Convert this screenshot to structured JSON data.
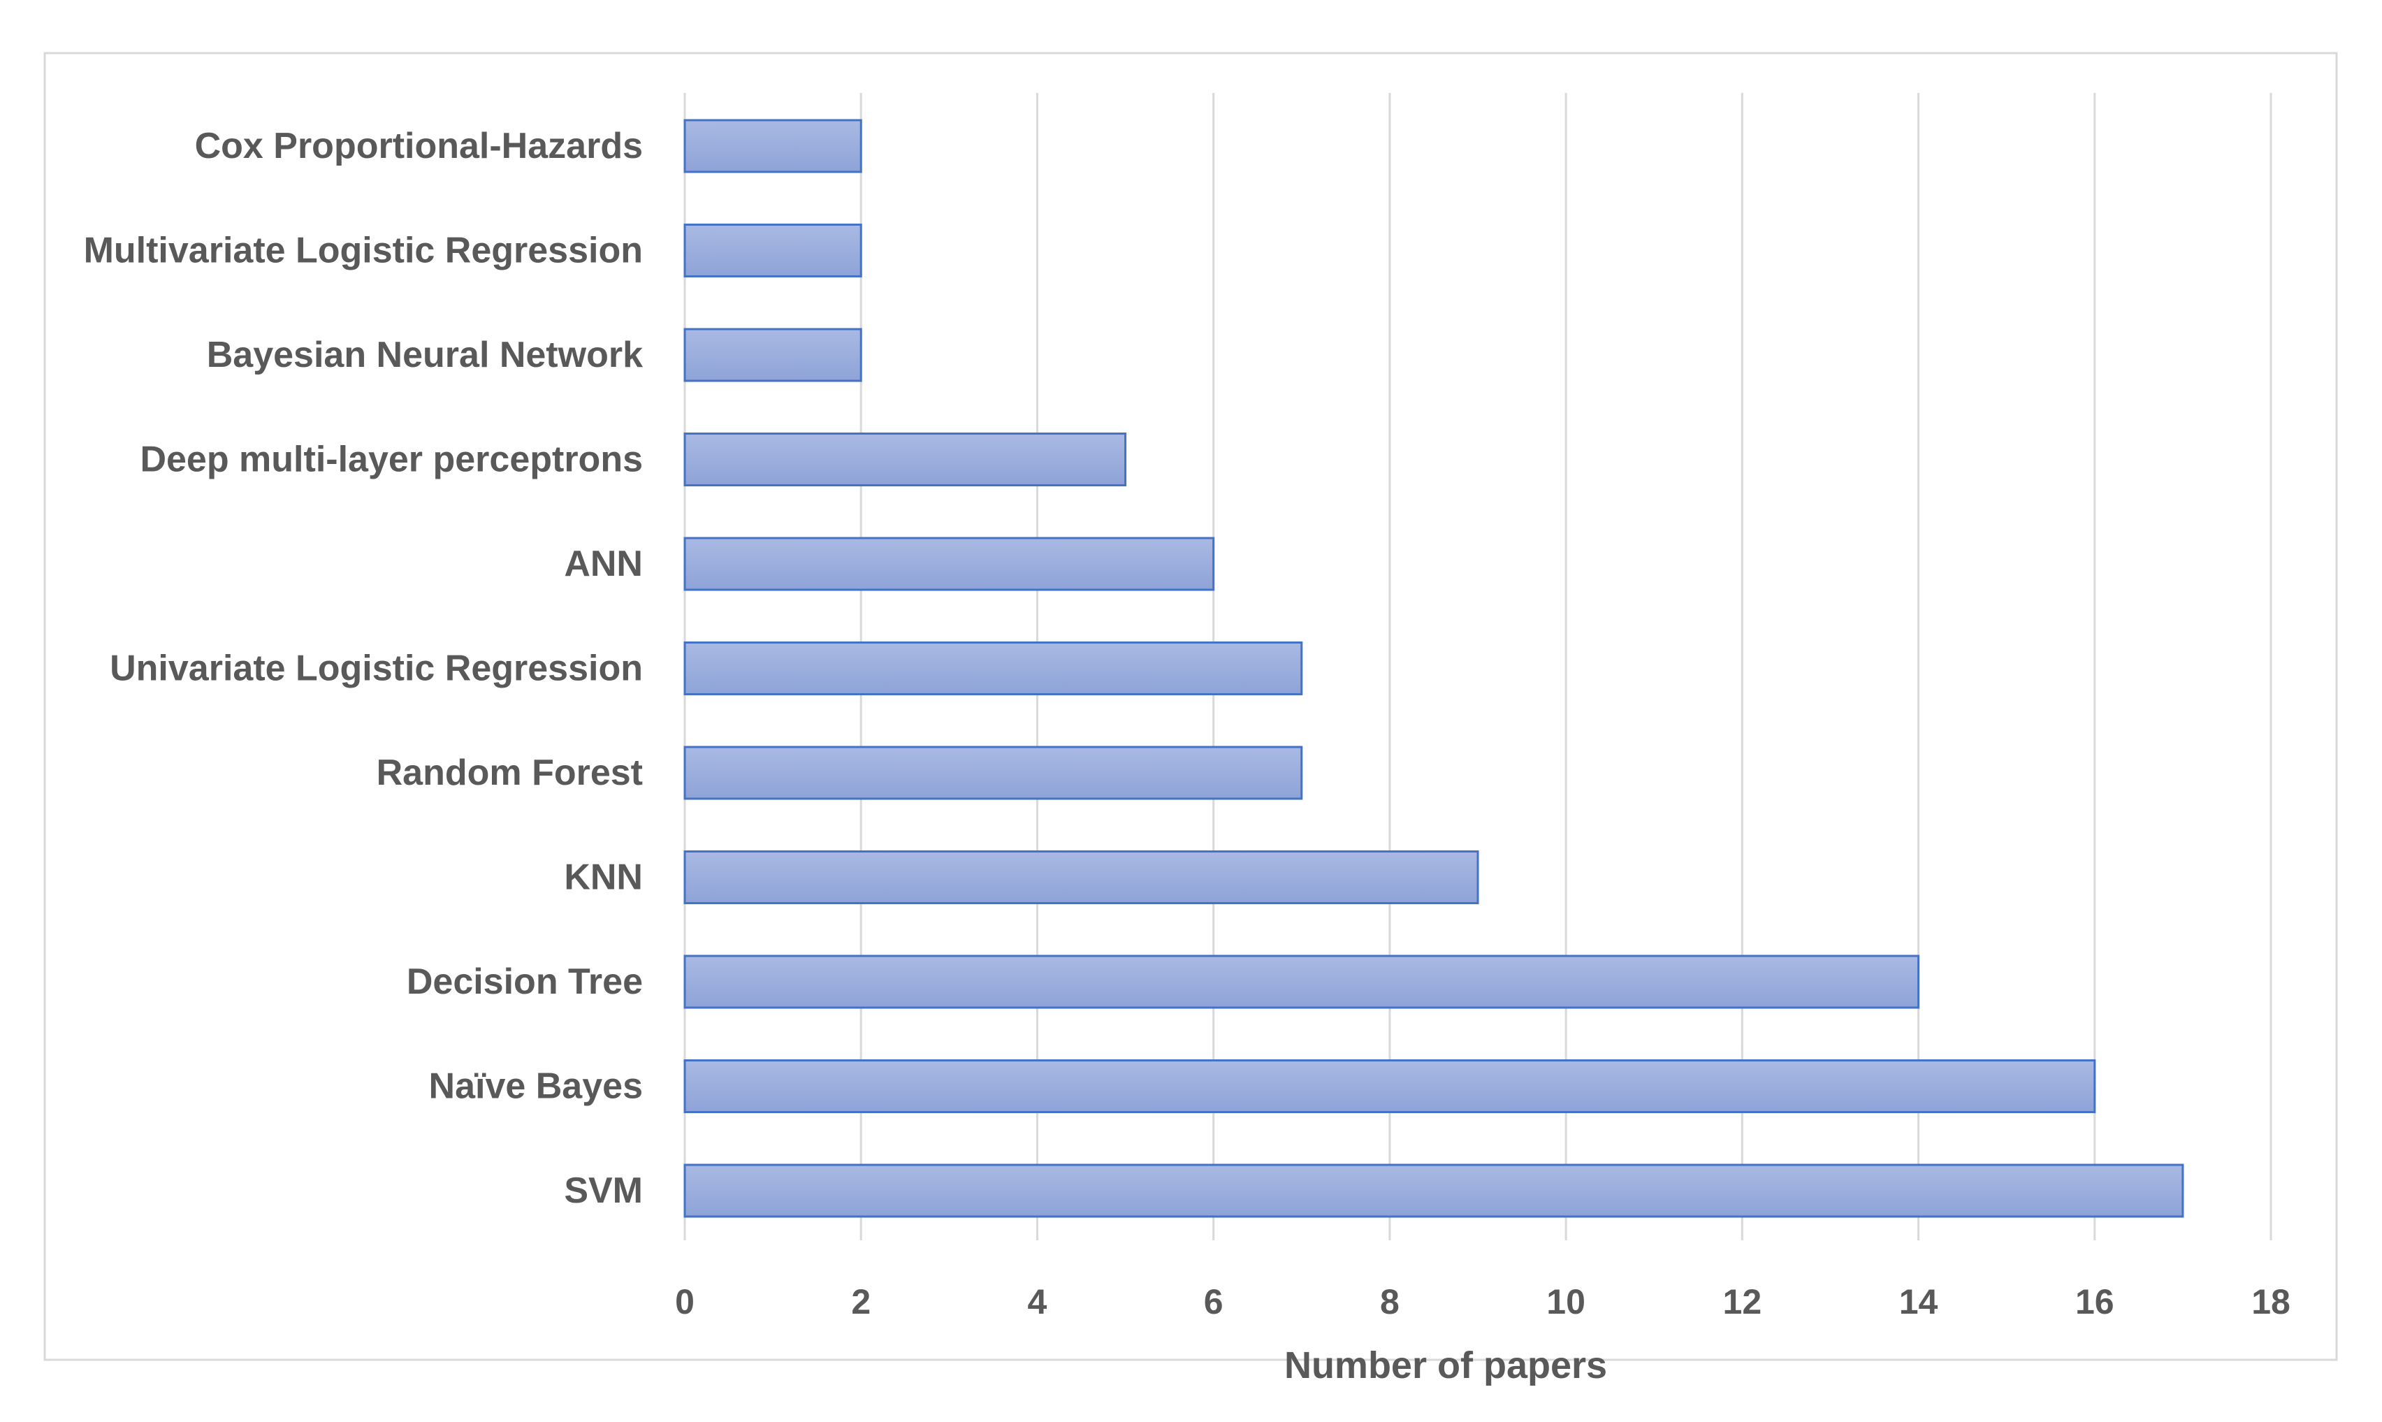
{
  "chart_data": {
    "type": "bar",
    "orientation": "horizontal",
    "categories": [
      "Cox Proportional-Hazards",
      "Multivariate Logistic Regression",
      "Bayesian Neural Network",
      "Deep multi-layer perceptrons",
      "ANN",
      "Univariate Logistic Regression",
      "Random Forest",
      "KNN",
      "Decision Tree",
      "Naïve Bayes",
      "SVM"
    ],
    "values": [
      2,
      2,
      2,
      5,
      6,
      7,
      7,
      9,
      14,
      16,
      17
    ],
    "title": "",
    "xlabel": "Number of papers",
    "ylabel": "",
    "xlim": [
      0,
      18
    ],
    "xticks": [
      "0",
      "2",
      "4",
      "6",
      "8",
      "10",
      "12",
      "14",
      "16",
      "18"
    ],
    "grid": "vertical",
    "legend": "none",
    "colors": {
      "bar_fill_top": "#a9b9e3",
      "bar_fill_bottom": "#8ea3d8",
      "bar_stroke": "#4472c4",
      "gridline": "#d9d9d9",
      "border": "#d9d9d9",
      "text": "#595959"
    }
  }
}
